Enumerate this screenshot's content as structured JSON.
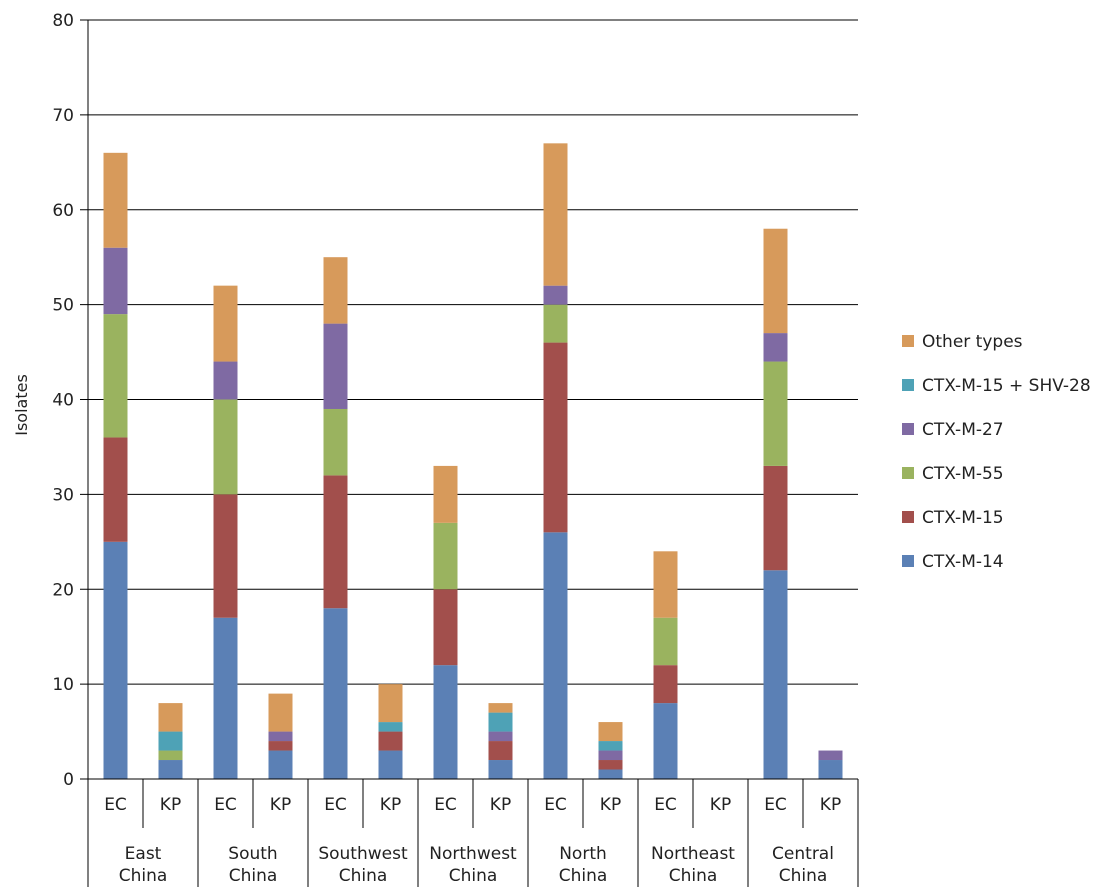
{
  "chart_data": {
    "type": "bar",
    "stacked": true,
    "ylabel": "Isolates",
    "ylim": [
      0,
      80
    ],
    "yticks": [
      0,
      10,
      20,
      30,
      40,
      50,
      60,
      70,
      80
    ],
    "grid": true,
    "legend_position": "right",
    "groups": [
      "East China",
      "South China",
      "Southwest China",
      "Northwest China",
      "North China",
      "Northeast China",
      "Central China"
    ],
    "subcategories": [
      "EC",
      "KP"
    ],
    "categories": [
      "East China EC",
      "East China KP",
      "South China EC",
      "South China KP",
      "Southwest China EC",
      "Southwest China KP",
      "Northwest China EC",
      "Northwest China KP",
      "North China EC",
      "North China KP",
      "Northeast China EC",
      "Northeast China KP",
      "Central China EC",
      "Central China KP"
    ],
    "series": [
      {
        "name": "CTX-M-14",
        "color": "#5b80b5",
        "values": [
          25,
          2,
          17,
          3,
          18,
          3,
          12,
          2,
          26,
          1,
          8,
          0,
          22,
          2
        ]
      },
      {
        "name": "CTX-M-15",
        "color": "#a24f4c",
        "values": [
          11,
          0,
          13,
          1,
          14,
          2,
          8,
          2,
          20,
          1,
          4,
          0,
          11,
          0
        ]
      },
      {
        "name": "CTX-M-55",
        "color": "#9ab35f",
        "values": [
          13,
          1,
          10,
          0,
          7,
          0,
          7,
          0,
          4,
          0,
          5,
          0,
          11,
          0
        ]
      },
      {
        "name": "CTX-M-27",
        "color": "#7f6aa3",
        "values": [
          7,
          0,
          4,
          1,
          9,
          0,
          0,
          1,
          2,
          1,
          0,
          0,
          3,
          1
        ]
      },
      {
        "name": "CTX-M-15 + SHV-28",
        "color": "#4ea2b6",
        "values": [
          0,
          2,
          0,
          0,
          0,
          1,
          0,
          2,
          0,
          1,
          0,
          0,
          0,
          0
        ]
      },
      {
        "name": "Other types",
        "color": "#d79a5b",
        "values": [
          10,
          3,
          8,
          4,
          7,
          4,
          6,
          1,
          15,
          2,
          7,
          0,
          11,
          0
        ]
      }
    ]
  }
}
